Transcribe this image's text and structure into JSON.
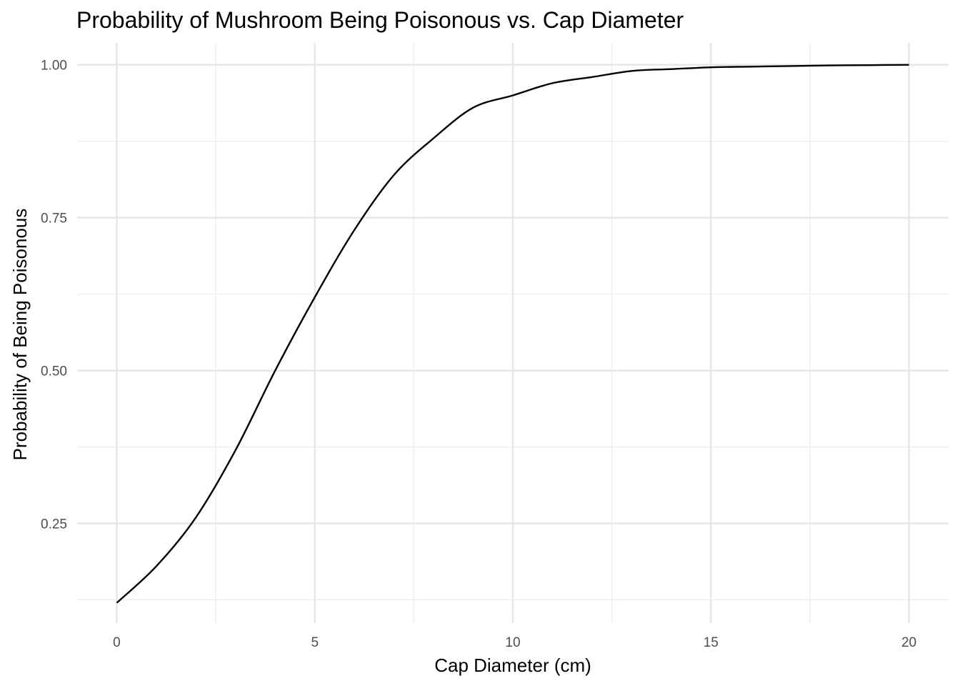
{
  "chart_data": {
    "type": "line",
    "title": "Probability of Mushroom Being Poisonous vs. Cap Diameter",
    "xlabel": "Cap Diameter (cm)",
    "ylabel": "Probability of Being Poisonous",
    "xlim": [
      -1,
      21
    ],
    "ylim": [
      0.0869,
      1.0359
    ],
    "x_ticks": [
      0,
      5,
      10,
      15,
      20
    ],
    "x_tick_labels": [
      "0",
      "5",
      "10",
      "15",
      "20"
    ],
    "x_minor_ticks": [
      2.5,
      7.5,
      12.5,
      17.5
    ],
    "y_ticks": [
      0.25,
      0.5,
      0.75,
      1.0
    ],
    "y_tick_labels": [
      "0.25",
      "0.50",
      "0.75",
      "1.00"
    ],
    "y_minor_ticks": [
      0.125,
      0.375,
      0.625,
      0.875
    ],
    "grid": true,
    "legend": "none",
    "line_color": "#000000",
    "series": [
      {
        "x": [
          0,
          1,
          2,
          3,
          4,
          5,
          6,
          7,
          8,
          9,
          10,
          11,
          12,
          13,
          14,
          15,
          16,
          17,
          18,
          19,
          20
        ],
        "values": [
          0.12,
          0.18,
          0.26,
          0.37,
          0.5,
          0.62,
          0.73,
          0.82,
          0.88,
          0.93,
          0.95,
          0.97,
          0.98,
          0.99,
          0.993,
          0.996,
          0.997,
          0.998,
          0.999,
          0.9995,
          1.0
        ]
      }
    ]
  }
}
